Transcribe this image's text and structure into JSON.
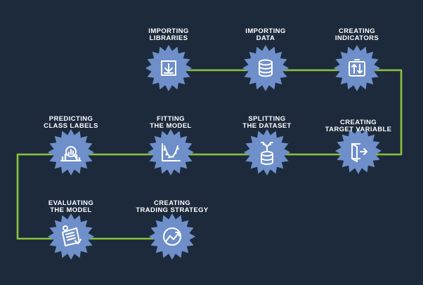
{
  "steps": [
    {
      "id": "importing-libraries",
      "lines": [
        "IMPORTING",
        "LIBRARIES"
      ],
      "icon": "download-icon"
    },
    {
      "id": "importing-data",
      "lines": [
        "IMPORTING",
        "DATA"
      ],
      "icon": "database-icon"
    },
    {
      "id": "creating-indicators",
      "lines": [
        "CREATING",
        "INDICATORS"
      ],
      "icon": "up-down-arrows-icon"
    },
    {
      "id": "creating-target-variable",
      "lines": [
        "CREATING",
        "TARGET VARIABLE"
      ],
      "icon": "exit-door-icon"
    },
    {
      "id": "splitting-the-dataset",
      "lines": [
        "SPLITTING",
        "THE DATASET"
      ],
      "icon": "split-database-icon"
    },
    {
      "id": "fitting-the-model",
      "lines": [
        "FITTING",
        "THE MODEL"
      ],
      "icon": "curve-fit-chart-icon"
    },
    {
      "id": "predicting-class-labels",
      "lines": [
        "PREDICTING",
        "CLASS LABELS"
      ],
      "icon": "magnifier-bar-chart-icon"
    },
    {
      "id": "evaluating-the-model",
      "lines": [
        "EVALUATING",
        "THE MODEL"
      ],
      "icon": "report-checklist-icon"
    },
    {
      "id": "creating-trading-strategy",
      "lines": [
        "CREATING",
        "TRADING STRATEGY"
      ],
      "icon": "trend-arrow-icon"
    }
  ],
  "colors": {
    "background": "#1c2a3c",
    "connector": "#8cc43c",
    "badge": "#6e8fc9",
    "text": "#ffffff"
  }
}
